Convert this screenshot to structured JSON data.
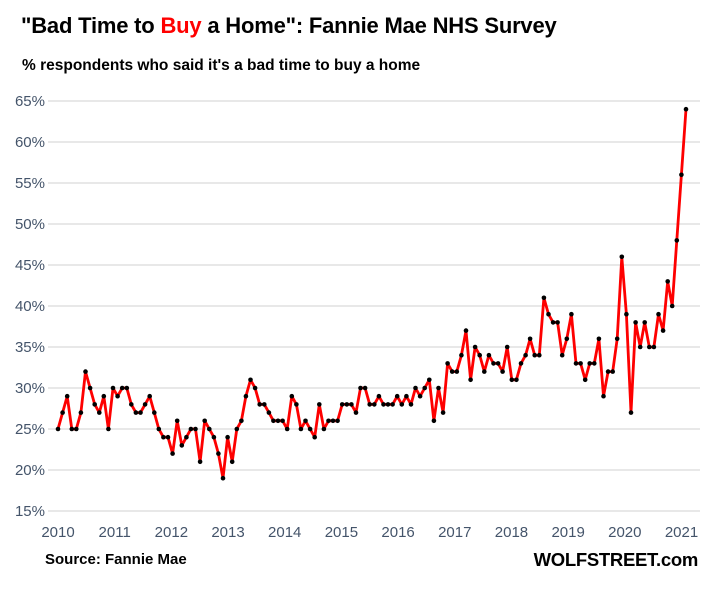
{
  "title": {
    "prefix": "\"Bad Time to ",
    "highlight": "Buy",
    "suffix": " a Home\": Fannie Mae NHS Survey"
  },
  "subtitle": "% respondents who said it's a bad time to buy a home",
  "footer": {
    "source": "Source: Fannie Mae",
    "watermark": "WOLFSTREET.com"
  },
  "colors": {
    "line": "#fe0000",
    "marker": "#000000",
    "title_highlight": "#ff0000",
    "axis_text": "#44546a",
    "gridline": "#d9d9d9",
    "background": "#ffffff"
  },
  "chart_data": {
    "type": "line",
    "title": "\"Bad Time to Buy a Home\": Fannie Mae NHS Survey",
    "subtitle": "% respondents who said it's a bad time to buy a home",
    "grid": "horizontal",
    "legend_position": "none",
    "ylim": [
      15,
      65
    ],
    "y_step": 5,
    "y_tick_labels": [
      "15%",
      "20%",
      "25%",
      "30%",
      "35%",
      "40%",
      "45%",
      "50%",
      "55%",
      "60%",
      "65%"
    ],
    "x_tick_labels": [
      "2010",
      "2011",
      "2012",
      "2013",
      "2014",
      "2015",
      "2016",
      "2017",
      "2018",
      "2019",
      "2020",
      "2021"
    ],
    "series": [
      {
        "name": "% who said bad time to buy a home",
        "frequency": "monthly",
        "x": [
          "2010-01",
          "2010-02",
          "2010-03",
          "2010-04",
          "2010-05",
          "2010-06",
          "2010-07",
          "2010-08",
          "2010-09",
          "2010-10",
          "2010-11",
          "2010-12",
          "2011-01",
          "2011-02",
          "2011-03",
          "2011-04",
          "2011-05",
          "2011-06",
          "2011-07",
          "2011-08",
          "2011-09",
          "2011-10",
          "2011-11",
          "2011-12",
          "2012-01",
          "2012-02",
          "2012-03",
          "2012-04",
          "2012-05",
          "2012-06",
          "2012-07",
          "2012-08",
          "2012-09",
          "2012-10",
          "2012-11",
          "2012-12",
          "2013-01",
          "2013-02",
          "2013-03",
          "2013-04",
          "2013-05",
          "2013-06",
          "2013-07",
          "2013-08",
          "2013-09",
          "2013-10",
          "2013-11",
          "2013-12",
          "2014-01",
          "2014-02",
          "2014-03",
          "2014-04",
          "2014-05",
          "2014-06",
          "2014-07",
          "2014-08",
          "2014-09",
          "2014-10",
          "2014-11",
          "2014-12",
          "2015-01",
          "2015-02",
          "2015-03",
          "2015-04",
          "2015-05",
          "2015-06",
          "2015-07",
          "2015-08",
          "2015-09",
          "2015-10",
          "2015-11",
          "2015-12",
          "2016-01",
          "2016-02",
          "2016-03",
          "2016-04",
          "2016-05",
          "2016-06",
          "2016-07",
          "2016-08",
          "2016-09",
          "2016-10",
          "2016-11",
          "2016-12",
          "2017-01",
          "2017-02",
          "2017-03",
          "2017-04",
          "2017-05",
          "2017-06",
          "2017-07",
          "2017-08",
          "2017-09",
          "2017-10",
          "2017-11",
          "2017-12",
          "2018-01",
          "2018-02",
          "2018-03",
          "2018-04",
          "2018-05",
          "2018-06",
          "2018-07",
          "2018-08",
          "2018-09",
          "2018-10",
          "2018-11",
          "2018-12",
          "2019-01",
          "2019-02",
          "2019-03",
          "2019-04",
          "2019-05",
          "2019-06",
          "2019-07",
          "2019-08",
          "2019-09",
          "2019-10",
          "2019-11",
          "2019-12",
          "2020-01",
          "2020-02",
          "2020-03",
          "2020-04",
          "2020-05",
          "2020-06",
          "2020-07",
          "2020-08",
          "2020-09",
          "2020-10",
          "2020-11",
          "2020-12",
          "2021-01",
          "2021-02",
          "2021-03",
          "2021-04",
          "2021-05",
          "2021-06"
        ],
        "values": [
          25,
          27,
          29,
          25,
          25,
          27,
          32,
          30,
          28,
          27,
          29,
          25,
          30,
          29,
          30,
          30,
          28,
          27,
          27,
          28,
          29,
          27,
          25,
          24,
          24,
          22,
          26,
          23,
          24,
          25,
          25,
          21,
          26,
          25,
          24,
          22,
          19,
          24,
          21,
          25,
          26,
          29,
          31,
          30,
          28,
          28,
          27,
          26,
          26,
          26,
          25,
          29,
          28,
          25,
          26,
          25,
          24,
          28,
          25,
          26,
          26,
          26,
          28,
          28,
          28,
          27,
          30,
          30,
          28,
          28,
          29,
          28,
          28,
          28,
          29,
          28,
          29,
          28,
          30,
          29,
          30,
          31,
          26,
          30,
          27,
          33,
          32,
          32,
          34,
          37,
          31,
          35,
          34,
          32,
          34,
          33,
          33,
          32,
          35,
          31,
          31,
          33,
          34,
          36,
          34,
          34,
          41,
          39,
          38,
          38,
          34,
          36,
          39,
          33,
          33,
          31,
          33,
          33,
          36,
          29,
          32,
          32,
          36,
          46,
          39,
          27,
          38,
          35,
          38,
          35,
          35,
          39,
          37,
          43,
          40,
          48,
          56,
          64
        ]
      }
    ]
  }
}
